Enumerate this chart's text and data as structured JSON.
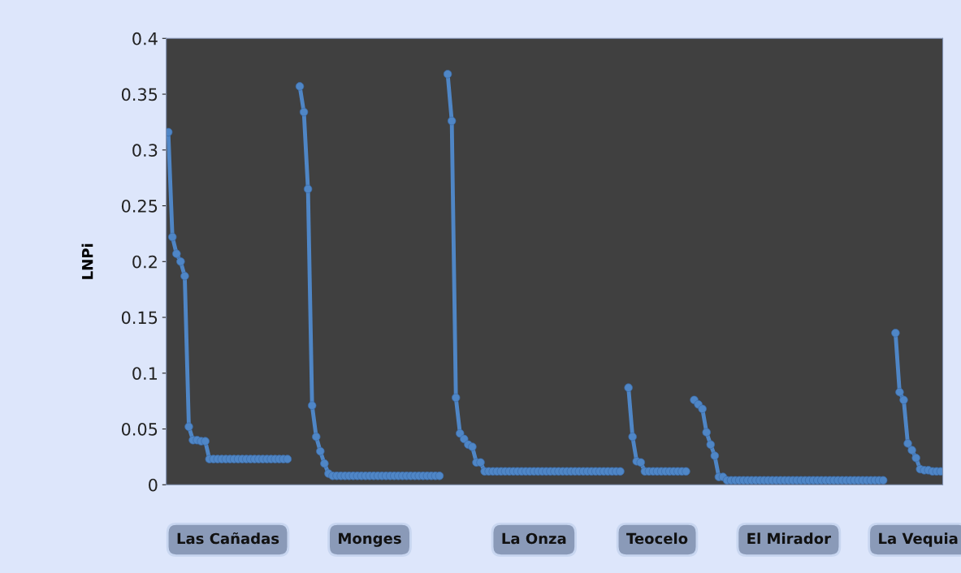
{
  "chart_data": {
    "type": "line",
    "ylabel": "LNPi",
    "categories": [
      null,
      null,
      null,
      null,
      null,
      null,
      null,
      null,
      null,
      null,
      null,
      null,
      null,
      null,
      null,
      null,
      null,
      null,
      null,
      null,
      null,
      null,
      null,
      null,
      null,
      null,
      null,
      null,
      null,
      null,
      null,
      null,
      null,
      null,
      null,
      null,
      null,
      null,
      null,
      null,
      null,
      null,
      null,
      null,
      null,
      null,
      null,
      null,
      null,
      null,
      null,
      null,
      null,
      null,
      null,
      null,
      null,
      null,
      null,
      null,
      null,
      null,
      null,
      null,
      null,
      null,
      null,
      null,
      null,
      null,
      null,
      null,
      null,
      null,
      null,
      null,
      null,
      null,
      null,
      null,
      null,
      null,
      null,
      null,
      null,
      null,
      null,
      null,
      null,
      null,
      null,
      null,
      null,
      null,
      null,
      null,
      null,
      null,
      null,
      null,
      null,
      null,
      null,
      null,
      null,
      null,
      null,
      null,
      null,
      null,
      null,
      null,
      null,
      null,
      null,
      null,
      null,
      null,
      null,
      null,
      null,
      null,
      null,
      null,
      null,
      null,
      null,
      null,
      null,
      null,
      null,
      null,
      null,
      null,
      null,
      null,
      null,
      null,
      null,
      null,
      null,
      null,
      null,
      null,
      null,
      null,
      null,
      null,
      null,
      null,
      null,
      null,
      null,
      null,
      null,
      null,
      null,
      null,
      null,
      null,
      null,
      null,
      null,
      null,
      null,
      null,
      null,
      null,
      null,
      null,
      null,
      null,
      null,
      null,
      null,
      null,
      null,
      null,
      null,
      null,
      null,
      null,
      null,
      null,
      null,
      null,
      null,
      null,
      null
    ],
    "series": [
      {
        "color": "#4f86c6",
        "values": [
          0.316,
          0.222,
          0.207,
          0.2,
          0.187,
          0.052,
          0.04,
          0.04,
          0.039,
          0.039,
          0.023,
          0.023,
          0.023,
          0.023,
          0.023,
          0.023,
          0.023,
          0.023,
          0.023,
          0.023,
          0.023,
          0.023,
          0.023,
          0.023,
          0.023,
          0.023,
          0.023,
          0.023,
          0.023,
          0.023,
          null,
          null,
          0.357,
          0.334,
          0.265,
          0.071,
          0.043,
          0.03,
          0.019,
          0.01,
          0.008,
          0.008,
          0.008,
          0.008,
          0.008,
          0.008,
          0.008,
          0.008,
          0.008,
          0.008,
          0.008,
          0.008,
          0.008,
          0.008,
          0.008,
          0.008,
          0.008,
          0.008,
          0.008,
          0.008,
          0.008,
          0.008,
          0.008,
          0.008,
          0.008,
          0.008,
          0.008,
          null,
          0.368,
          0.326,
          0.078,
          0.046,
          0.041,
          0.036,
          0.034,
          0.02,
          0.02,
          0.012,
          0.012,
          0.012,
          0.012,
          0.012,
          0.012,
          0.012,
          0.012,
          0.012,
          0.012,
          0.012,
          0.012,
          0.012,
          0.012,
          0.012,
          0.012,
          0.012,
          0.012,
          0.012,
          0.012,
          0.012,
          0.012,
          0.012,
          0.012,
          0.012,
          0.012,
          0.012,
          0.012,
          0.012,
          0.012,
          0.012,
          0.012,
          0.012,
          0.012,
          null,
          0.087,
          0.043,
          0.021,
          0.02,
          0.012,
          0.012,
          0.012,
          0.012,
          0.012,
          0.012,
          0.012,
          0.012,
          0.012,
          0.012,
          0.012,
          null,
          0.076,
          0.072,
          0.068,
          0.047,
          0.036,
          0.026,
          0.007,
          0.007,
          0.004,
          0.004,
          0.004,
          0.004,
          0.004,
          0.004,
          0.004,
          0.004,
          0.004,
          0.004,
          0.004,
          0.004,
          0.004,
          0.004,
          0.004,
          0.004,
          0.004,
          0.004,
          0.004,
          0.004,
          0.004,
          0.004,
          0.004,
          0.004,
          0.004,
          0.004,
          0.004,
          0.004,
          0.004,
          0.004,
          0.004,
          0.004,
          0.004,
          0.004,
          0.004,
          0.004,
          0.004,
          0.004,
          0.004,
          null,
          null,
          0.136,
          0.083,
          0.076,
          0.037,
          0.031,
          0.024,
          0.014,
          0.013,
          0.013,
          0.012,
          0.012,
          0.012
        ]
      }
    ],
    "ylim": [
      0,
      0.4
    ],
    "yticks": [
      0,
      0.05,
      0.1,
      0.15,
      0.2,
      0.25,
      0.3,
      0.35,
      0.4
    ],
    "grid": false,
    "marker": "circle",
    "line_style": "solid",
    "tick_labels": "y",
    "annotations": [
      "Las Cañadas",
      "Monges",
      "La Onza",
      "Teocelo",
      "El Mirador",
      "La Vequia"
    ]
  }
}
